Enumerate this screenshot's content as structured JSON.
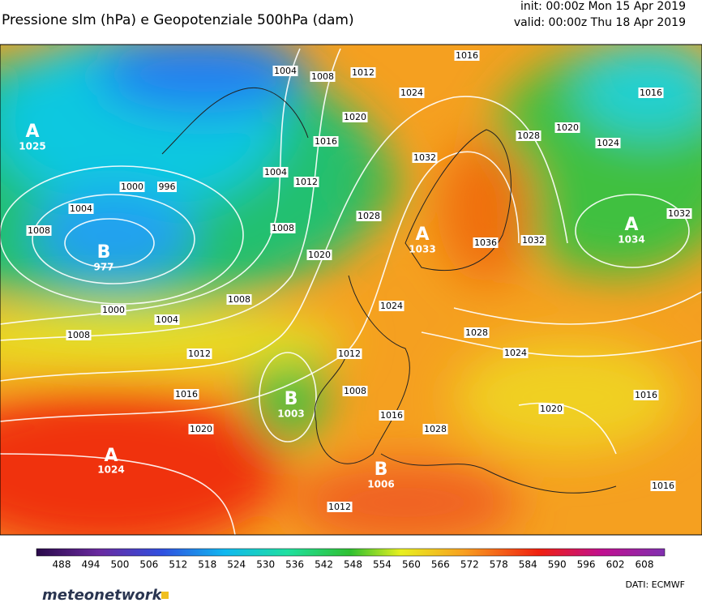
{
  "header": {
    "title": "Pressione slm (hPa) e Geopotenziale 500hPa (dam)",
    "init": "init: 00:00z Mon 15 Apr 2019",
    "valid": "valid: 00:00z Thu 18 Apr 2019"
  },
  "map": {
    "centers": [
      {
        "letter": "A",
        "value": "1025"
      },
      {
        "letter": "B",
        "value": "977"
      },
      {
        "letter": "A",
        "value": "1033"
      },
      {
        "letter": "A",
        "value": "1034"
      },
      {
        "letter": "B",
        "value": "1003"
      },
      {
        "letter": "A",
        "value": "1024"
      },
      {
        "letter": "B",
        "value": "1006"
      }
    ],
    "isobar_labels": [
      "1004",
      "1008",
      "1012",
      "1016",
      "1016",
      "1024",
      "1020",
      "1016",
      "1004",
      "1012",
      "1032",
      "1028",
      "1020",
      "1024",
      "1032",
      "1000",
      "996",
      "1004",
      "1008",
      "1008",
      "1028",
      "1020",
      "1036",
      "1032",
      "1000",
      "1004",
      "1008",
      "1008",
      "1024",
      "1028",
      "1024",
      "1012",
      "1012",
      "1016",
      "1008",
      "1016",
      "1020",
      "1016",
      "1028",
      "1020",
      "1012",
      "1016"
    ]
  },
  "colorbar": {
    "ticks": [
      488,
      494,
      500,
      506,
      512,
      518,
      524,
      530,
      536,
      542,
      548,
      554,
      560,
      566,
      572,
      578,
      584,
      590,
      596,
      602,
      608
    ]
  },
  "footer": {
    "logo": "meteonetwork",
    "source": "DATI: ECMWF"
  }
}
